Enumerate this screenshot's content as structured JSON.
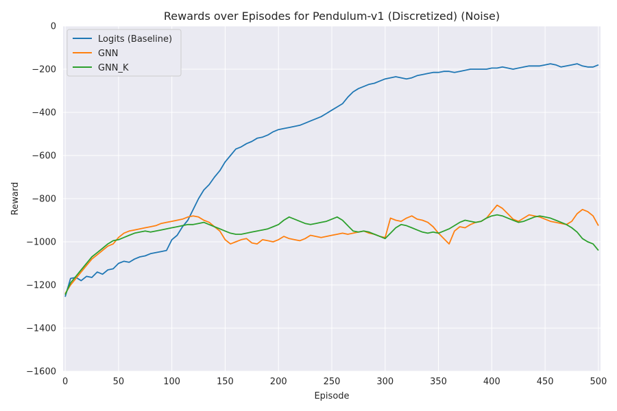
{
  "chart_data": {
    "type": "line",
    "title": "Rewards over Episodes for Pendulum-v1 (Discretized) (Noise)",
    "xlabel": "Episode",
    "ylabel": "Reward",
    "xlim": [
      -2,
      502
    ],
    "ylim": [
      -1600,
      0
    ],
    "xticks": [
      0,
      50,
      100,
      150,
      200,
      250,
      300,
      350,
      400,
      450,
      500
    ],
    "yticks": [
      0,
      -200,
      -400,
      -600,
      -800,
      -1000,
      -1200,
      -1400,
      -1600
    ],
    "grid": true,
    "legend_position": "upper-left",
    "series": [
      {
        "name": "Logits (Baseline)",
        "color": "#1f77b4",
        "points": [
          [
            0,
            -1255
          ],
          [
            5,
            -1170
          ],
          [
            10,
            -1165
          ],
          [
            15,
            -1180
          ],
          [
            20,
            -1160
          ],
          [
            25,
            -1165
          ],
          [
            30,
            -1140
          ],
          [
            35,
            -1150
          ],
          [
            40,
            -1130
          ],
          [
            45,
            -1125
          ],
          [
            50,
            -1100
          ],
          [
            55,
            -1090
          ],
          [
            60,
            -1095
          ],
          [
            65,
            -1080
          ],
          [
            70,
            -1070
          ],
          [
            75,
            -1065
          ],
          [
            80,
            -1055
          ],
          [
            85,
            -1050
          ],
          [
            90,
            -1045
          ],
          [
            95,
            -1040
          ],
          [
            100,
            -990
          ],
          [
            105,
            -970
          ],
          [
            110,
            -930
          ],
          [
            115,
            -900
          ],
          [
            120,
            -850
          ],
          [
            125,
            -800
          ],
          [
            130,
            -760
          ],
          [
            135,
            -735
          ],
          [
            140,
            -700
          ],
          [
            145,
            -670
          ],
          [
            150,
            -630
          ],
          [
            155,
            -600
          ],
          [
            160,
            -570
          ],
          [
            165,
            -560
          ],
          [
            170,
            -545
          ],
          [
            175,
            -535
          ],
          [
            180,
            -520
          ],
          [
            185,
            -515
          ],
          [
            190,
            -505
          ],
          [
            195,
            -490
          ],
          [
            200,
            -480
          ],
          [
            205,
            -475
          ],
          [
            210,
            -470
          ],
          [
            215,
            -465
          ],
          [
            220,
            -460
          ],
          [
            225,
            -450
          ],
          [
            230,
            -440
          ],
          [
            235,
            -430
          ],
          [
            240,
            -420
          ],
          [
            245,
            -405
          ],
          [
            250,
            -390
          ],
          [
            255,
            -375
          ],
          [
            260,
            -360
          ],
          [
            265,
            -330
          ],
          [
            270,
            -305
          ],
          [
            275,
            -290
          ],
          [
            280,
            -280
          ],
          [
            285,
            -270
          ],
          [
            290,
            -265
          ],
          [
            295,
            -255
          ],
          [
            300,
            -245
          ],
          [
            305,
            -240
          ],
          [
            310,
            -235
          ],
          [
            315,
            -240
          ],
          [
            320,
            -245
          ],
          [
            325,
            -240
          ],
          [
            330,
            -230
          ],
          [
            335,
            -225
          ],
          [
            340,
            -220
          ],
          [
            345,
            -215
          ],
          [
            350,
            -215
          ],
          [
            355,
            -210
          ],
          [
            360,
            -210
          ],
          [
            365,
            -215
          ],
          [
            370,
            -210
          ],
          [
            375,
            -205
          ],
          [
            380,
            -200
          ],
          [
            385,
            -200
          ],
          [
            390,
            -200
          ],
          [
            395,
            -200
          ],
          [
            400,
            -195
          ],
          [
            405,
            -195
          ],
          [
            410,
            -190
          ],
          [
            415,
            -195
          ],
          [
            420,
            -200
          ],
          [
            425,
            -195
          ],
          [
            430,
            -190
          ],
          [
            435,
            -185
          ],
          [
            440,
            -185
          ],
          [
            445,
            -185
          ],
          [
            450,
            -180
          ],
          [
            455,
            -175
          ],
          [
            460,
            -180
          ],
          [
            465,
            -190
          ],
          [
            470,
            -185
          ],
          [
            475,
            -180
          ],
          [
            480,
            -175
          ],
          [
            485,
            -185
          ],
          [
            490,
            -190
          ],
          [
            495,
            -190
          ],
          [
            500,
            -180
          ]
        ]
      },
      {
        "name": "GNN",
        "color": "#ff7f0e",
        "points": [
          [
            0,
            -1240
          ],
          [
            5,
            -1200
          ],
          [
            10,
            -1170
          ],
          [
            15,
            -1140
          ],
          [
            20,
            -1110
          ],
          [
            25,
            -1080
          ],
          [
            30,
            -1060
          ],
          [
            35,
            -1040
          ],
          [
            40,
            -1020
          ],
          [
            45,
            -1010
          ],
          [
            50,
            -980
          ],
          [
            55,
            -960
          ],
          [
            60,
            -950
          ],
          [
            65,
            -945
          ],
          [
            70,
            -940
          ],
          [
            75,
            -935
          ],
          [
            80,
            -930
          ],
          [
            85,
            -925
          ],
          [
            90,
            -915
          ],
          [
            95,
            -910
          ],
          [
            100,
            -905
          ],
          [
            105,
            -900
          ],
          [
            110,
            -895
          ],
          [
            115,
            -885
          ],
          [
            120,
            -880
          ],
          [
            125,
            -885
          ],
          [
            130,
            -900
          ],
          [
            135,
            -910
          ],
          [
            140,
            -930
          ],
          [
            145,
            -950
          ],
          [
            150,
            -990
          ],
          [
            155,
            -1010
          ],
          [
            160,
            -1000
          ],
          [
            165,
            -990
          ],
          [
            170,
            -985
          ],
          [
            175,
            -1005
          ],
          [
            180,
            -1010
          ],
          [
            185,
            -990
          ],
          [
            190,
            -995
          ],
          [
            195,
            -1000
          ],
          [
            200,
            -990
          ],
          [
            205,
            -975
          ],
          [
            210,
            -985
          ],
          [
            215,
            -990
          ],
          [
            220,
            -995
          ],
          [
            225,
            -985
          ],
          [
            230,
            -970
          ],
          [
            235,
            -975
          ],
          [
            240,
            -980
          ],
          [
            245,
            -975
          ],
          [
            250,
            -970
          ],
          [
            255,
            -965
          ],
          [
            260,
            -960
          ],
          [
            265,
            -965
          ],
          [
            270,
            -960
          ],
          [
            275,
            -955
          ],
          [
            280,
            -950
          ],
          [
            285,
            -960
          ],
          [
            290,
            -965
          ],
          [
            295,
            -975
          ],
          [
            300,
            -980
          ],
          [
            305,
            -890
          ],
          [
            310,
            -900
          ],
          [
            315,
            -905
          ],
          [
            320,
            -890
          ],
          [
            325,
            -880
          ],
          [
            330,
            -895
          ],
          [
            335,
            -900
          ],
          [
            340,
            -910
          ],
          [
            345,
            -930
          ],
          [
            350,
            -960
          ],
          [
            355,
            -985
          ],
          [
            360,
            -1010
          ],
          [
            365,
            -950
          ],
          [
            370,
            -930
          ],
          [
            375,
            -935
          ],
          [
            380,
            -920
          ],
          [
            385,
            -910
          ],
          [
            390,
            -905
          ],
          [
            395,
            -890
          ],
          [
            400,
            -860
          ],
          [
            405,
            -830
          ],
          [
            410,
            -845
          ],
          [
            415,
            -870
          ],
          [
            420,
            -895
          ],
          [
            425,
            -905
          ],
          [
            430,
            -890
          ],
          [
            435,
            -875
          ],
          [
            440,
            -880
          ],
          [
            445,
            -885
          ],
          [
            450,
            -895
          ],
          [
            455,
            -905
          ],
          [
            460,
            -910
          ],
          [
            465,
            -915
          ],
          [
            470,
            -920
          ],
          [
            475,
            -905
          ],
          [
            480,
            -870
          ],
          [
            485,
            -850
          ],
          [
            490,
            -860
          ],
          [
            495,
            -880
          ],
          [
            500,
            -925
          ]
        ]
      },
      {
        "name": "GNN_K",
        "color": "#2ca02c",
        "points": [
          [
            0,
            -1245
          ],
          [
            5,
            -1190
          ],
          [
            10,
            -1160
          ],
          [
            15,
            -1130
          ],
          [
            20,
            -1100
          ],
          [
            25,
            -1070
          ],
          [
            30,
            -1050
          ],
          [
            35,
            -1030
          ],
          [
            40,
            -1010
          ],
          [
            45,
            -995
          ],
          [
            50,
            -990
          ],
          [
            55,
            -980
          ],
          [
            60,
            -970
          ],
          [
            65,
            -960
          ],
          [
            70,
            -955
          ],
          [
            75,
            -950
          ],
          [
            80,
            -955
          ],
          [
            85,
            -950
          ],
          [
            90,
            -945
          ],
          [
            95,
            -940
          ],
          [
            100,
            -935
          ],
          [
            105,
            -930
          ],
          [
            110,
            -925
          ],
          [
            115,
            -920
          ],
          [
            120,
            -920
          ],
          [
            125,
            -915
          ],
          [
            130,
            -910
          ],
          [
            135,
            -920
          ],
          [
            140,
            -930
          ],
          [
            145,
            -940
          ],
          [
            150,
            -950
          ],
          [
            155,
            -960
          ],
          [
            160,
            -965
          ],
          [
            165,
            -965
          ],
          [
            170,
            -960
          ],
          [
            175,
            -955
          ],
          [
            180,
            -950
          ],
          [
            185,
            -945
          ],
          [
            190,
            -940
          ],
          [
            195,
            -930
          ],
          [
            200,
            -920
          ],
          [
            205,
            -900
          ],
          [
            210,
            -885
          ],
          [
            215,
            -895
          ],
          [
            220,
            -905
          ],
          [
            225,
            -915
          ],
          [
            230,
            -920
          ],
          [
            235,
            -915
          ],
          [
            240,
            -910
          ],
          [
            245,
            -905
          ],
          [
            250,
            -895
          ],
          [
            255,
            -885
          ],
          [
            260,
            -900
          ],
          [
            265,
            -925
          ],
          [
            270,
            -950
          ],
          [
            275,
            -955
          ],
          [
            280,
            -950
          ],
          [
            285,
            -955
          ],
          [
            290,
            -965
          ],
          [
            295,
            -975
          ],
          [
            300,
            -985
          ],
          [
            305,
            -960
          ],
          [
            310,
            -935
          ],
          [
            315,
            -920
          ],
          [
            320,
            -925
          ],
          [
            325,
            -935
          ],
          [
            330,
            -945
          ],
          [
            335,
            -955
          ],
          [
            340,
            -960
          ],
          [
            345,
            -955
          ],
          [
            350,
            -960
          ],
          [
            355,
            -950
          ],
          [
            360,
            -940
          ],
          [
            365,
            -925
          ],
          [
            370,
            -910
          ],
          [
            375,
            -900
          ],
          [
            380,
            -905
          ],
          [
            385,
            -910
          ],
          [
            390,
            -905
          ],
          [
            395,
            -890
          ],
          [
            400,
            -880
          ],
          [
            405,
            -875
          ],
          [
            410,
            -880
          ],
          [
            415,
            -890
          ],
          [
            420,
            -900
          ],
          [
            425,
            -910
          ],
          [
            430,
            -905
          ],
          [
            435,
            -895
          ],
          [
            440,
            -885
          ],
          [
            445,
            -880
          ],
          [
            450,
            -885
          ],
          [
            455,
            -890
          ],
          [
            460,
            -900
          ],
          [
            465,
            -910
          ],
          [
            470,
            -920
          ],
          [
            475,
            -935
          ],
          [
            480,
            -955
          ],
          [
            485,
            -985
          ],
          [
            490,
            -1000
          ],
          [
            495,
            -1010
          ],
          [
            500,
            -1040
          ]
        ]
      }
    ]
  }
}
